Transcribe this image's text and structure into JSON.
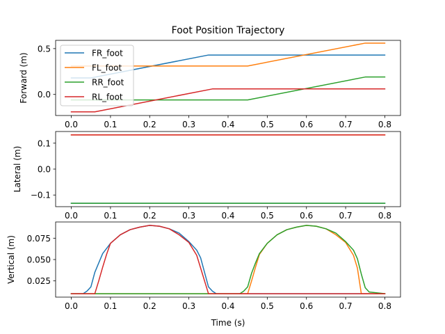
{
  "chart_data": {
    "type": "line",
    "title": "Foot Position Trajectory",
    "xlabel": "Time (s)",
    "x_ticks": [
      "0.0",
      "0.1",
      "0.2",
      "0.3",
      "0.4",
      "0.5",
      "0.6",
      "0.7",
      "0.8"
    ],
    "xlim": [
      -0.04,
      0.84
    ],
    "legend": {
      "location": "upper-left",
      "entries": [
        "FR_foot",
        "FL_foot",
        "RR_foot",
        "RL_foot"
      ]
    },
    "colors": {
      "FR_foot": "#1f77b4",
      "FL_foot": "#ff7f0e",
      "RR_foot": "#2ca02c",
      "RL_foot": "#d62728"
    },
    "grid": false,
    "subplots": [
      {
        "ylabel": "Forward (m)",
        "ylim": [
          -0.23,
          0.59
        ],
        "y_ticks": [
          0.5,
          0.0
        ],
        "y_tick_labels": [
          "0.5",
          "0.0"
        ],
        "series": [
          {
            "name": "FR_foot",
            "x": [
              0.0,
              0.05,
              0.35,
              0.8
            ],
            "y": [
              0.18,
              0.18,
              0.43,
              0.43
            ]
          },
          {
            "name": "FL_foot",
            "x": [
              0.0,
              0.45,
              0.75,
              0.8
            ],
            "y": [
              0.31,
              0.31,
              0.56,
              0.56
            ]
          },
          {
            "name": "RR_foot",
            "x": [
              0.0,
              0.45,
              0.75,
              0.8
            ],
            "y": [
              -0.06,
              -0.06,
              0.19,
              0.19
            ]
          },
          {
            "name": "RL_foot",
            "x": [
              0.0,
              0.06,
              0.36,
              0.8
            ],
            "y": [
              -0.19,
              -0.19,
              0.06,
              0.06
            ]
          }
        ]
      },
      {
        "ylabel": "Lateral (m)",
        "ylim": [
          -0.145,
          0.145
        ],
        "y_ticks": [
          0.1,
          0.0,
          -0.1
        ],
        "y_tick_labels": [
          "0.1",
          "0.0",
          "−0.1"
        ],
        "series": [
          {
            "name": "FR_foot",
            "x": [
              0.0,
              0.8
            ],
            "y": [
              -0.132,
              -0.132
            ]
          },
          {
            "name": "FL_foot",
            "x": [
              0.0,
              0.8
            ],
            "y": [
              0.132,
              0.132
            ]
          },
          {
            "name": "RR_foot",
            "x": [
              0.0,
              0.8
            ],
            "y": [
              -0.132,
              -0.132
            ]
          },
          {
            "name": "RL_foot",
            "x": [
              0.0,
              0.8
            ],
            "y": [
              0.132,
              0.132
            ]
          }
        ]
      },
      {
        "ylabel": "Vertical (m)",
        "ylim": [
          0.006,
          0.094
        ],
        "y_ticks": [
          0.025,
          0.05,
          0.075
        ],
        "y_tick_labels": [
          "0.025",
          "0.050",
          "0.075"
        ],
        "series": [
          {
            "name": "FR_foot",
            "x": [
              0.0,
              0.03,
              0.04,
              0.05,
              0.06,
              0.08,
              0.1,
              0.125,
              0.15,
              0.175,
              0.2,
              0.225,
              0.25,
              0.275,
              0.3,
              0.32,
              0.33,
              0.34,
              0.35,
              0.36,
              0.37,
              0.8
            ],
            "y": [
              0.01,
              0.01,
              0.013,
              0.018,
              0.035,
              0.057,
              0.069,
              0.079,
              0.085,
              0.088,
              0.09,
              0.089,
              0.086,
              0.081,
              0.071,
              0.061,
              0.052,
              0.035,
              0.018,
              0.013,
              0.01,
              0.01
            ]
          },
          {
            "name": "FL_foot",
            "x": [
              0.0,
              0.44,
              0.45,
              0.46,
              0.47,
              0.48,
              0.5,
              0.525,
              0.55,
              0.575,
              0.6,
              0.625,
              0.65,
              0.675,
              0.7,
              0.72,
              0.73,
              0.74,
              0.8
            ],
            "y": [
              0.01,
              0.01,
              0.01,
              0.025,
              0.041,
              0.056,
              0.069,
              0.079,
              0.085,
              0.088,
              0.09,
              0.089,
              0.086,
              0.079,
              0.07,
              0.055,
              0.04,
              0.01,
              0.01
            ]
          },
          {
            "name": "RR_foot",
            "x": [
              0.0,
              0.43,
              0.44,
              0.45,
              0.46,
              0.47,
              0.48,
              0.5,
              0.525,
              0.55,
              0.575,
              0.6,
              0.625,
              0.65,
              0.675,
              0.7,
              0.72,
              0.73,
              0.74,
              0.75,
              0.76,
              0.8
            ],
            "y": [
              0.01,
              0.01,
              0.013,
              0.018,
              0.034,
              0.046,
              0.057,
              0.069,
              0.079,
              0.085,
              0.088,
              0.09,
              0.089,
              0.086,
              0.081,
              0.071,
              0.061,
              0.051,
              0.033,
              0.017,
              0.012,
              0.01
            ]
          },
          {
            "name": "RL_foot",
            "x": [
              0.0,
              0.06,
              0.07,
              0.08,
              0.09,
              0.1,
              0.125,
              0.15,
              0.175,
              0.2,
              0.225,
              0.25,
              0.275,
              0.3,
              0.32,
              0.33,
              0.34,
              0.35,
              0.8
            ],
            "y": [
              0.01,
              0.01,
              0.025,
              0.041,
              0.056,
              0.069,
              0.079,
              0.085,
              0.088,
              0.09,
              0.089,
              0.086,
              0.079,
              0.07,
              0.055,
              0.04,
              0.025,
              0.01,
              0.01
            ]
          }
        ]
      }
    ]
  }
}
